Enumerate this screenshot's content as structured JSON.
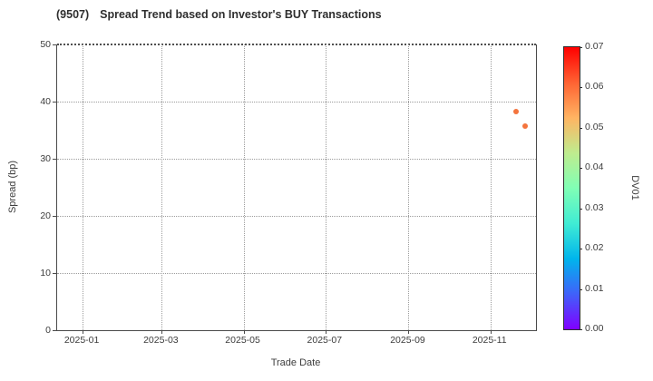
{
  "chart_data": {
    "type": "scatter",
    "title_code": "(9507)",
    "title_text": "Spread Trend based on Investor's BUY Transactions",
    "xlabel": "Trade Date",
    "ylabel": "Spread (bp)",
    "background_color": "#ffffff",
    "grid": "dotted",
    "x_axis": {
      "domain_min": "2024-12-13",
      "domain_max": "2025-12-05",
      "ticks": [
        {
          "date": "2025-01-01",
          "label": "2025-01"
        },
        {
          "date": "2025-03-01",
          "label": "2025-03"
        },
        {
          "date": "2025-05-01",
          "label": "2025-05"
        },
        {
          "date": "2025-07-01",
          "label": "2025-07"
        },
        {
          "date": "2025-09-01",
          "label": "2025-09"
        },
        {
          "date": "2025-11-01",
          "label": "2025-11"
        }
      ]
    },
    "y_axis": {
      "min": 0,
      "max": 50,
      "ticks": [
        {
          "value": 0,
          "label": "0"
        },
        {
          "value": 10,
          "label": "10"
        },
        {
          "value": 20,
          "label": "20"
        },
        {
          "value": 30,
          "label": "30"
        },
        {
          "value": 40,
          "label": "40"
        },
        {
          "value": 50,
          "label": "50"
        }
      ]
    },
    "points": [
      {
        "date": "2025-11-20",
        "spread_bp": 38.3,
        "dv01": 0.059,
        "color": "#f4743d"
      },
      {
        "date": "2025-11-27",
        "spread_bp": 35.7,
        "dv01": 0.059,
        "color": "#f4743d"
      }
    ],
    "colorbar": {
      "label": "DV01",
      "min": 0.0,
      "max": 0.07,
      "ticks": [
        {
          "value": 0.0,
          "label": "0.00"
        },
        {
          "value": 0.01,
          "label": "0.01"
        },
        {
          "value": 0.02,
          "label": "0.02"
        },
        {
          "value": 0.03,
          "label": "0.03"
        },
        {
          "value": 0.04,
          "label": "0.04"
        },
        {
          "value": 0.05,
          "label": "0.05"
        },
        {
          "value": 0.06,
          "label": "0.06"
        },
        {
          "value": 0.07,
          "label": "0.07"
        }
      ],
      "colormap": "rainbow",
      "stops": [
        {
          "frac": 0.0,
          "color": "#8000ff"
        },
        {
          "frac": 0.125,
          "color": "#4061fa"
        },
        {
          "frac": 0.25,
          "color": "#00b5ec"
        },
        {
          "frac": 0.375,
          "color": "#40ecd4"
        },
        {
          "frac": 0.5,
          "color": "#80ffb5"
        },
        {
          "frac": 0.625,
          "color": "#bfec8e"
        },
        {
          "frac": 0.75,
          "color": "#ffb462"
        },
        {
          "frac": 0.875,
          "color": "#ff6232"
        },
        {
          "frac": 1.0,
          "color": "#ff0000"
        }
      ]
    }
  }
}
